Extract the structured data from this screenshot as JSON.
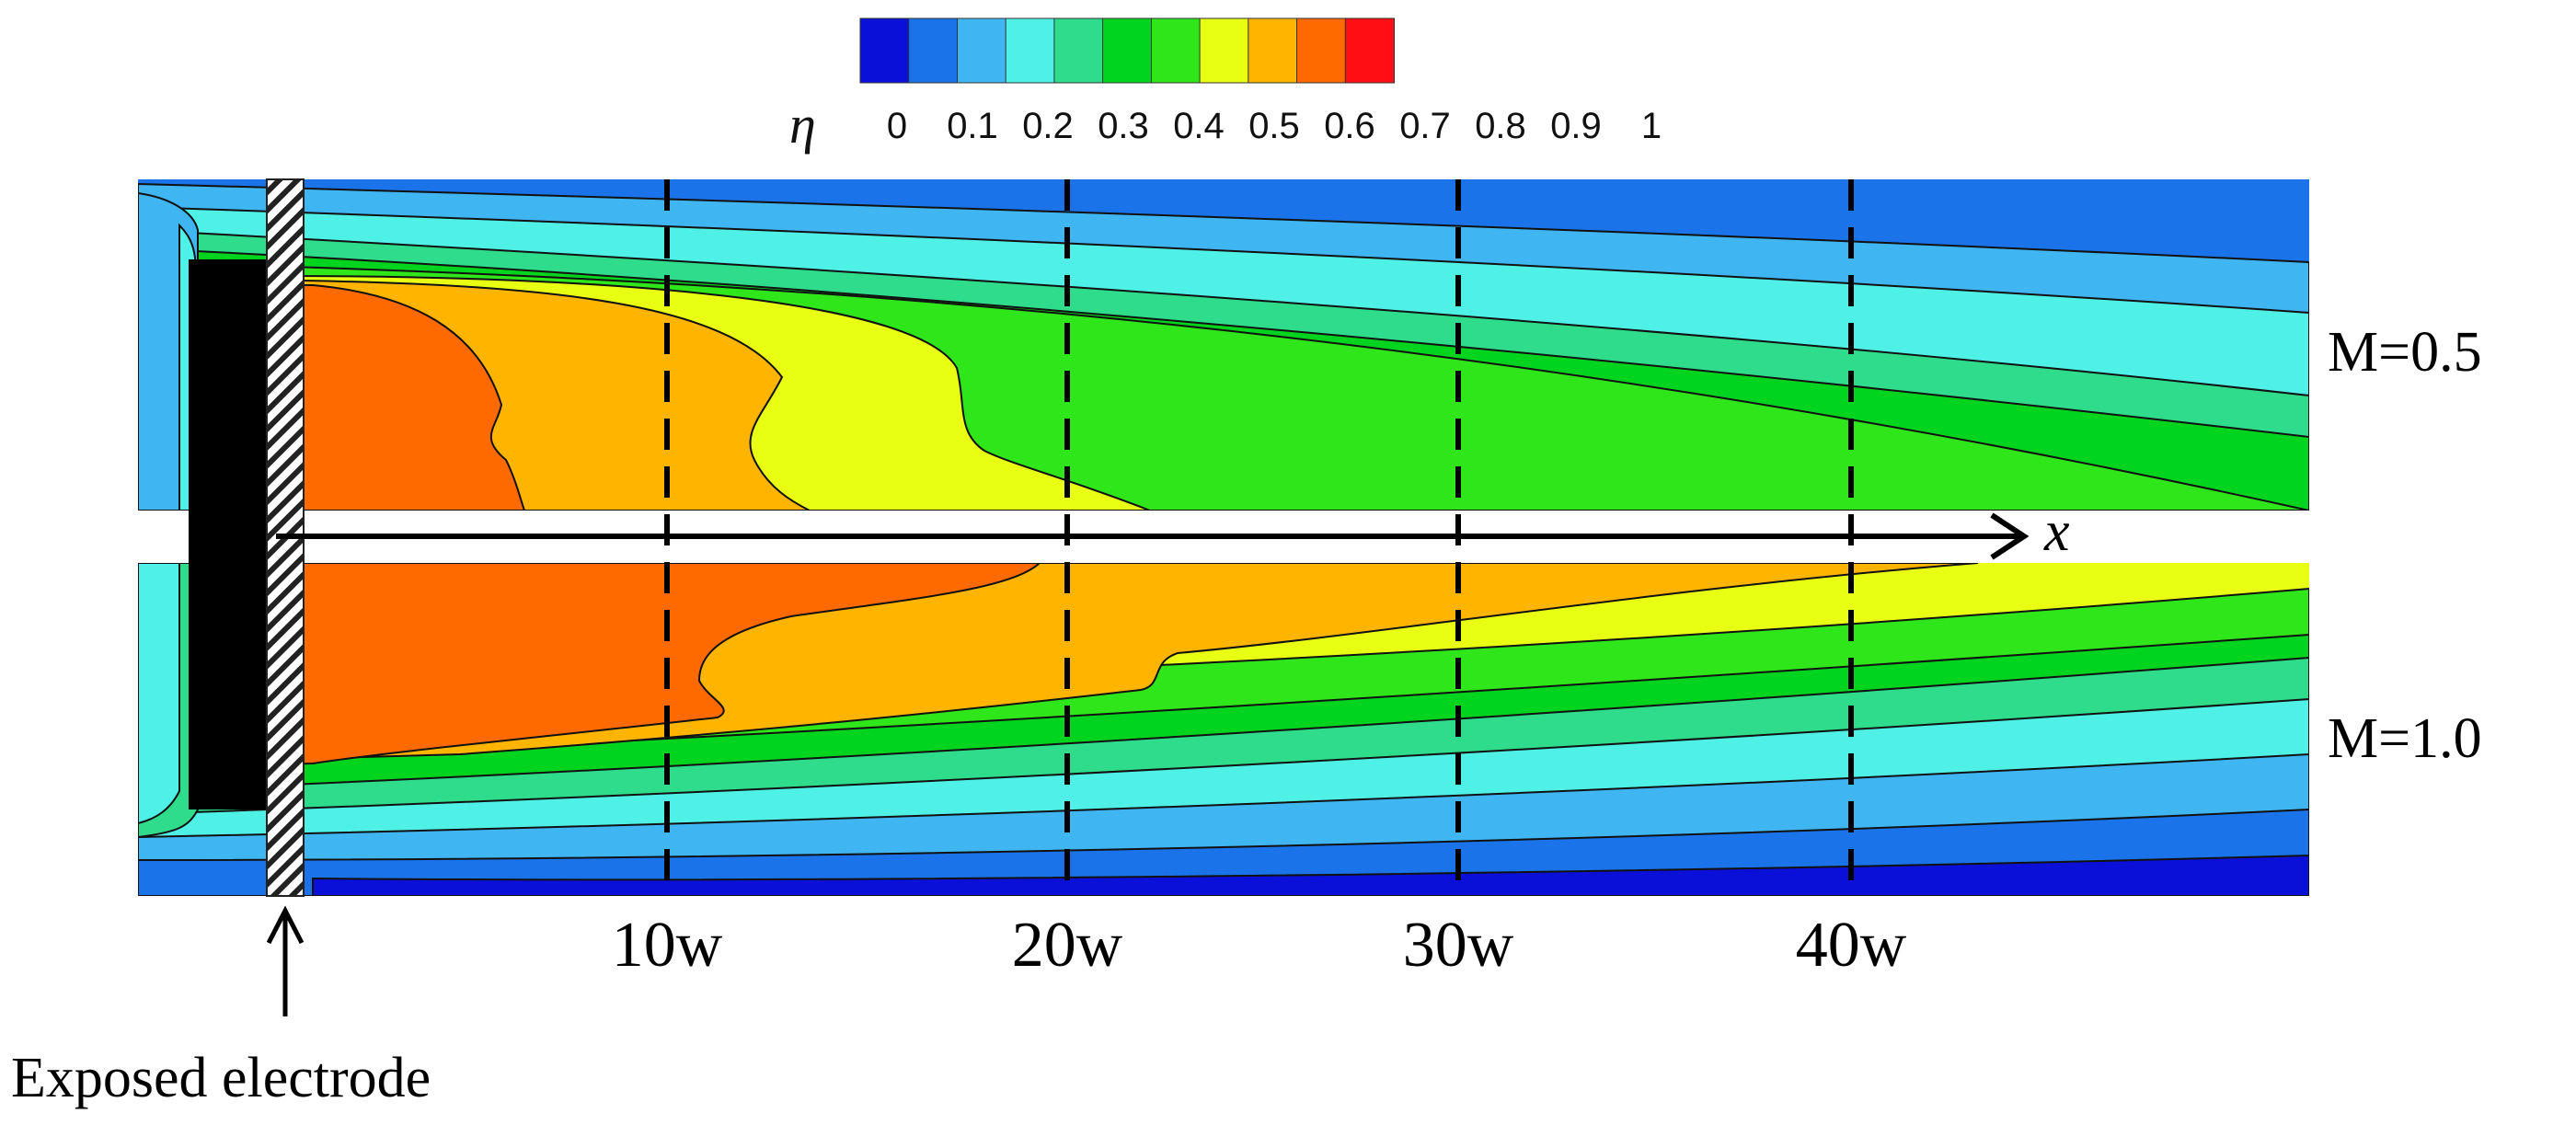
{
  "colorbar": {
    "symbol": "η",
    "ticks": [
      "0",
      "0.1",
      "0.2",
      "0.3",
      "0.4",
      "0.5",
      "0.6",
      "0.7",
      "0.8",
      "0.9",
      "1"
    ],
    "colors": [
      "#0a10d8",
      "#1a73e8",
      "#3fb5f2",
      "#4ff0e6",
      "#2fdc8c",
      "#00d41e",
      "#2ee61a",
      "#e8ff14",
      "#ffb400",
      "#ff6a00",
      "#ff0f14"
    ]
  },
  "cases": [
    {
      "label": "M=0.5"
    },
    {
      "label": "M=1.0"
    }
  ],
  "axis": {
    "symbol": "x"
  },
  "positions": [
    "10w",
    "20w",
    "30w",
    "40w"
  ],
  "annotation": {
    "text": "Exposed electrode"
  },
  "colors": {
    "background_blue": "#1a73e8",
    "electrode": "#000000",
    "dashed_lines": "#000000"
  }
}
